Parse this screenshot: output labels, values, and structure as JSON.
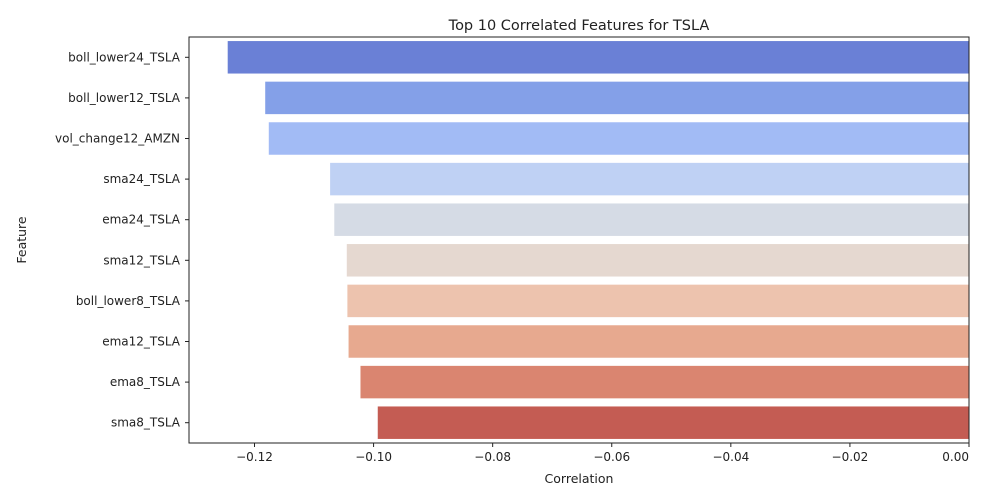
{
  "chart_data": {
    "type": "bar",
    "orientation": "horizontal",
    "title": "Top 10 Correlated Features for TSLA",
    "xlabel": "Correlation",
    "ylabel": "Feature",
    "xlim": [
      -0.131,
      0.0
    ],
    "xticks": [
      -0.12,
      -0.1,
      -0.08,
      -0.06,
      -0.04,
      -0.02,
      0.0
    ],
    "xtick_labels": [
      "−0.12",
      "−0.10",
      "−0.08",
      "−0.06",
      "−0.04",
      "−0.02",
      "0.00"
    ],
    "grid": false,
    "categories": [
      "boll_lower24_TSLA",
      "boll_lower12_TSLA",
      "vol_change12_AMZN",
      "sma24_TSLA",
      "ema24_TSLA",
      "sma12_TSLA",
      "boll_lower8_TSLA",
      "ema12_TSLA",
      "ema8_TSLA",
      "sma8_TSLA"
    ],
    "values": [
      -0.1245,
      -0.1182,
      -0.1176,
      -0.1073,
      -0.1066,
      -0.1045,
      -0.1044,
      -0.1042,
      -0.1022,
      -0.0993
    ],
    "colors": [
      "#6a80d6",
      "#84a0e8",
      "#a2bbf5",
      "#bfd1f4",
      "#d5dbe5",
      "#e5d8d0",
      "#edc3ae",
      "#e7a98f",
      "#da8570",
      "#c45c53"
    ]
  }
}
